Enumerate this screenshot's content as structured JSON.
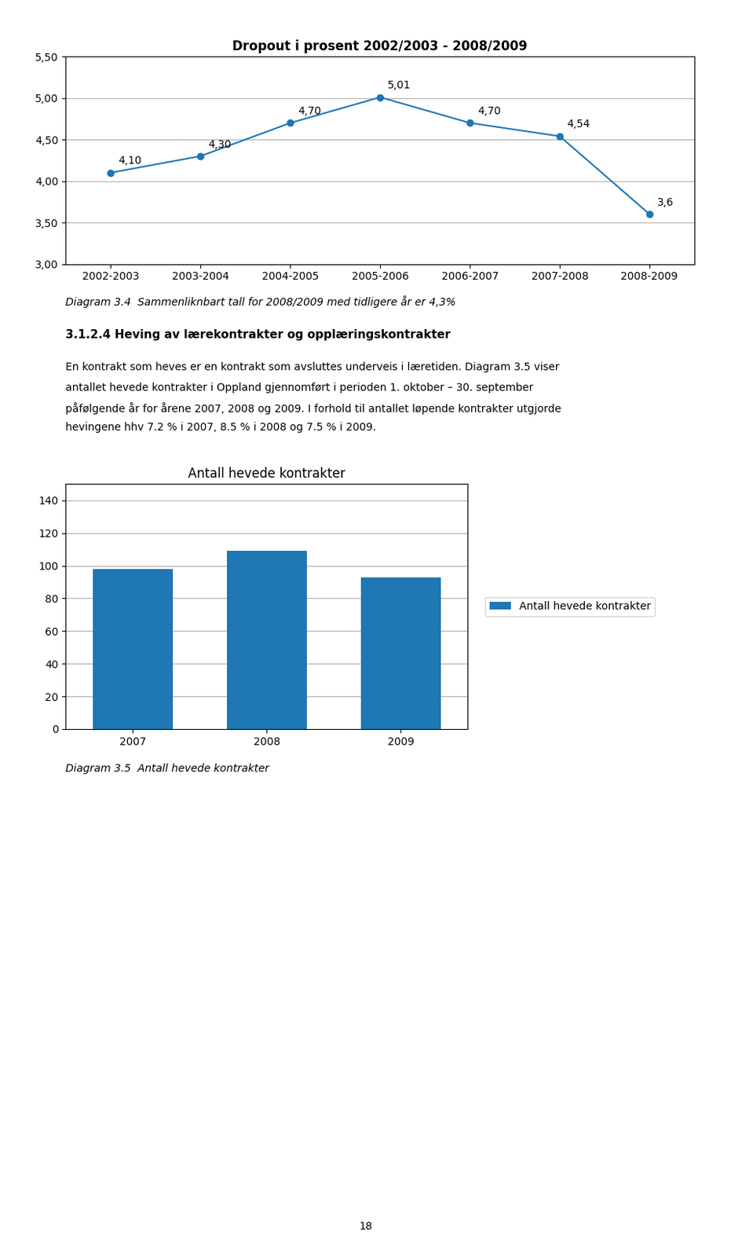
{
  "chart_data": [
    {
      "type": "line",
      "title": "Dropout i prosent 2002/2003 - 2008/2009",
      "categories": [
        "2002-2003",
        "2003-2004",
        "2004-2005",
        "2005-2006",
        "2006-2007",
        "2007-2008",
        "2008-2009"
      ],
      "values": [
        4.1,
        4.3,
        4.7,
        5.01,
        4.7,
        4.54,
        3.6
      ],
      "value_labels": [
        "4,10",
        "4,30",
        "4,70",
        "5,01",
        "4,70",
        "4,54",
        "3,6"
      ],
      "data_labels": true,
      "marker": "o",
      "ylim": [
        3.0,
        5.5
      ],
      "yticks": [
        {
          "value": 3.0,
          "label": "3,00"
        },
        {
          "value": 3.5,
          "label": "3,50"
        },
        {
          "value": 4.0,
          "label": "4,00"
        },
        {
          "value": 4.5,
          "label": "4,50"
        },
        {
          "value": 5.0,
          "label": "5,00"
        },
        {
          "value": 5.5,
          "label": "5,50"
        }
      ],
      "grid": true,
      "annotations": [
        "Diagram 3.4  Sammenliknbart tall for 2008/2009 med tidligere år er 4,3%",
        "3.1.2.4 Heving av lærekontrakter og opplæringskontrakter",
        "En kontrakt som heves er en kontrakt som avsluttes underveis i læretiden. Diagram 3.5 viser",
        "antallet hevede kontrakter i Oppland gjennomført i perioden 1. oktober – 30. september",
        "påfølgende år for årene 2007, 2008 og 2009. I forhold til antallet løpende kontrakter utgjorde",
        "hevingene hhv 7.2 % i 2007, 8.5 % i 2008 og 7.5 % i 2009."
      ]
    },
    {
      "type": "bar",
      "title": "Antall hevede kontrakter",
      "categories": [
        "2007",
        "2008",
        "2009"
      ],
      "series": [
        {
          "name": "Antall hevede kontrakter",
          "values": [
            98,
            109,
            93
          ]
        }
      ],
      "ylim": [
        0,
        150
      ],
      "yticks": [
        0,
        20,
        40,
        60,
        80,
        100,
        120,
        140
      ],
      "grid": true,
      "legend": "center left",
      "annotations": [
        "Diagram 3.5  Antall hevede kontrakter",
        "18"
      ]
    }
  ]
}
